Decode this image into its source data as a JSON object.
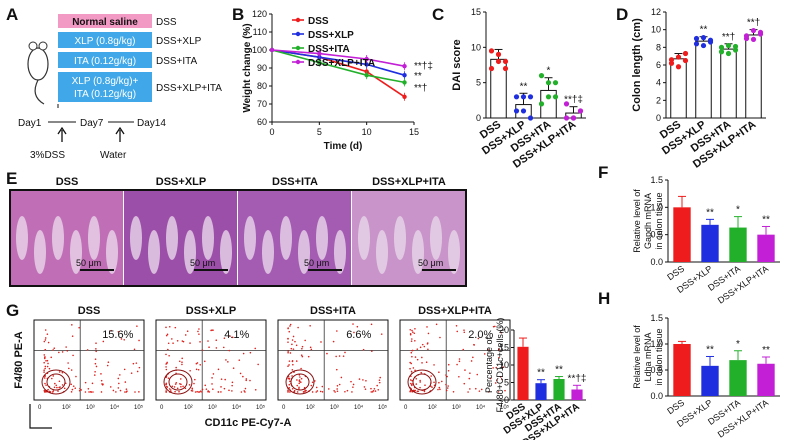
{
  "colors": {
    "dss": "#ee1c1c",
    "xlp": "#1f2fe0",
    "ita": "#22b02a",
    "combo": "#c21fd6",
    "header": "#f39ac4",
    "bar": "#40a8e8"
  },
  "panel_labels": [
    "A",
    "B",
    "C",
    "D",
    "E",
    "F",
    "G",
    "H"
  ],
  "panelA": {
    "rows": [
      {
        "label": "Normal saline",
        "group": "DSS"
      },
      {
        "label": "XLP (0.8g/kg)",
        "group": "DSS+XLP"
      },
      {
        "label": "ITA (0.12g/kg)",
        "group": "DSS+ITA"
      },
      {
        "label1": "XLP (0.8g/kg)+",
        "label2": "ITA (0.12g/kg)",
        "group": "DSS+XLP+ITA"
      }
    ],
    "timeline": {
      "day1": "Day1",
      "day7": "Day7",
      "day14": "Day14",
      "dss": "3%DSS",
      "water": "Water"
    }
  },
  "chart_data": [
    {
      "id": "B",
      "type": "line",
      "xlabel": "Time (d)",
      "ylabel": "Weight change (%)",
      "xlim": [
        0,
        15
      ],
      "ylim": [
        60,
        120
      ],
      "xticks": [
        0,
        5,
        10,
        15
      ],
      "yticks": [
        60,
        70,
        80,
        90,
        100,
        110,
        120
      ],
      "series": [
        {
          "name": "DSS",
          "x": [
            0,
            5,
            10,
            14
          ],
          "values": [
            100,
            96,
            88,
            74
          ]
        },
        {
          "name": "DSS+XLP",
          "x": [
            0,
            5,
            10,
            14
          ],
          "values": [
            100,
            96,
            92,
            86
          ]
        },
        {
          "name": "DSS+ITA",
          "x": [
            0,
            5,
            10,
            14
          ],
          "values": [
            100,
            93,
            86,
            82
          ]
        },
        {
          "name": "DSS+XLP+ITA",
          "x": [
            0,
            5,
            10,
            14
          ],
          "values": [
            100,
            98,
            95,
            91
          ]
        }
      ],
      "annotations": [
        "**†‡",
        "**",
        "**†"
      ]
    },
    {
      "id": "C",
      "type": "bar",
      "ylabel": "DAI score",
      "ylim": [
        0,
        15
      ],
      "yticks": [
        0,
        5,
        10,
        15
      ],
      "categories": [
        "DSS",
        "DSS+XLP",
        "DSS+ITA",
        "DSS+XLP+ITA"
      ],
      "values": [
        8.3,
        1.9,
        3.9,
        0.7
      ],
      "errors": [
        1.4,
        1.6,
        1.8,
        0.9
      ],
      "points": [
        [
          9.5,
          8,
          7,
          7,
          9,
          8
        ],
        [
          3,
          1,
          0,
          1,
          3,
          3
        ],
        [
          6,
          5,
          3,
          2,
          3,
          5
        ],
        [
          0,
          0,
          1,
          2,
          0,
          1
        ]
      ],
      "annotations": [
        "",
        "**",
        "*",
        "**†‡"
      ]
    },
    {
      "id": "D",
      "type": "bar",
      "ylabel": "Colon length (cm)",
      "ylim": [
        0,
        12
      ],
      "yticks": [
        0,
        2,
        4,
        6,
        8,
        10,
        12
      ],
      "categories": [
        "DSS",
        "DSS+XLP",
        "DSS+ITA",
        "DSS+XLP+ITA"
      ],
      "values": [
        6.7,
        8.7,
        7.8,
        9.4
      ],
      "errors": [
        0.6,
        0.5,
        0.6,
        0.6
      ],
      "points": [
        [
          6.2,
          6.9,
          7.3,
          6.6,
          5.8,
          6.5
        ],
        [
          8.4,
          9.1,
          8.6,
          9.0,
          8.2,
          8.8
        ],
        [
          7.5,
          8.2,
          7.7,
          8.0,
          7.3,
          8.1
        ],
        [
          9.0,
          9.9,
          9.5,
          9.3,
          8.9,
          9.7
        ]
      ],
      "annotations": [
        "",
        "**",
        "**†",
        "**†"
      ]
    },
    {
      "id": "F",
      "type": "bar",
      "ylabel": "Percentage of F4/80+CD11c+cells (%)",
      "ylim": [
        0,
        20
      ],
      "yticks": [
        0,
        5,
        10,
        15,
        20
      ],
      "categories": [
        "DSS",
        "DSS+XLP",
        "DSS+ITA",
        "DSS+XLP+ITA"
      ],
      "values": [
        15.2,
        4.8,
        6.0,
        3.0
      ],
      "errors": [
        2.5,
        1.0,
        0.7,
        1.2
      ],
      "annotations": [
        "",
        "**",
        "**",
        "**†‡"
      ]
    },
    {
      "id": "G",
      "type": "bar",
      "ylabel": "Relative level of Gapdh mRNA in colon tissue",
      "ylim": [
        0,
        1.5
      ],
      "yticks": [
        0.0,
        0.5,
        1.0,
        1.5
      ],
      "categories": [
        "DSS",
        "DSS+XLP",
        "DSS+ITA",
        "DSS+XLP+ITA"
      ],
      "values": [
        1.0,
        0.68,
        0.63,
        0.5
      ],
      "errors": [
        0.2,
        0.1,
        0.2,
        0.15
      ],
      "annotations": [
        "",
        "**",
        "*",
        "**"
      ]
    },
    {
      "id": "H",
      "type": "bar",
      "ylabel": "Relative level of Ldha mRNA in colon tissue",
      "ylim": [
        0,
        1.5
      ],
      "yticks": [
        0.0,
        0.5,
        1.0,
        1.5
      ],
      "categories": [
        "DSS",
        "DSS+XLP",
        "DSS+ITA",
        "DSS+XLP+ITA"
      ],
      "values": [
        1.0,
        0.58,
        0.69,
        0.62
      ],
      "errors": [
        0.05,
        0.18,
        0.18,
        0.13
      ],
      "annotations": [
        "",
        "**",
        "*",
        "**"
      ]
    }
  ],
  "histology": {
    "titles": [
      "DSS",
      "DSS+XLP",
      "DSS+ITA",
      "DSS+XLP+ITA"
    ],
    "scale": "50 μm"
  },
  "flow": {
    "titles": [
      "DSS",
      "DSS+XLP",
      "DSS+ITA",
      "DSS+XLP+ITA"
    ],
    "percents": [
      "15.6%",
      "4.1%",
      "6.6%",
      "2.0%"
    ],
    "xlabel": "CD11c PE-Cy7-A",
    "ylabel": "F4/80 PE-A",
    "ticks": [
      "0",
      "10²",
      "10³",
      "10⁴",
      "10⁵"
    ]
  }
}
